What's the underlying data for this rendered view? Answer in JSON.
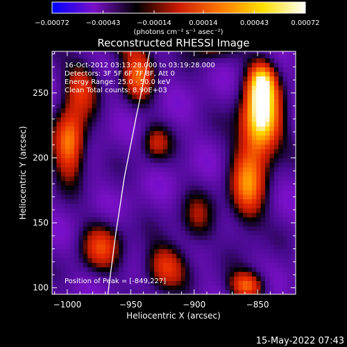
{
  "chart_data": {
    "type": "heatmap",
    "title": "Reconstructed RHESSI Image",
    "xlabel": "Heliocentric X (arcsec)",
    "ylabel": "Heliocentric Y (arcsec)",
    "xlim": [
      -1012,
      -820
    ],
    "ylim": [
      95,
      282
    ],
    "x_ticks": [
      -1000,
      -950,
      -900,
      -850
    ],
    "x_tick_labels": [
      "−1000",
      "−950",
      "−900",
      "−850"
    ],
    "y_ticks": [
      100,
      150,
      200,
      250
    ],
    "y_tick_labels": [
      "100",
      "150",
      "200",
      "250"
    ],
    "colorbar": {
      "range": [
        -0.00072,
        0.00072
      ],
      "ticks": [
        -0.00072,
        -0.00043,
        -0.00014,
        0.00014,
        0.00043,
        0.00072
      ],
      "tick_labels": [
        "−0.00072",
        "−0.00043",
        "−0.00014",
        "0.00014",
        "0.00043",
        "0.00072"
      ],
      "units": "(photons cm⁻² s⁻¹ asec⁻²)",
      "colors": [
        "#0000ff",
        "#7a10c8",
        "#000000",
        "#cc1a00",
        "#ff7a00",
        "#ffe000",
        "#ffffff"
      ]
    },
    "info_lines": [
      "16-Oct-2012 03:13:28.000 to 03:19:28.000",
      "Detectors: 3F 5F 6F 7F 8F, Att 0",
      "Energy Range: 25.0 - 50.0 keV",
      "Clean     Total counts: 8.90E+03"
    ],
    "peak_label": "Position of Peak = [-849,227]",
    "peak": [
      -849,
      227
    ],
    "limb_curve": [
      [
        -968,
        95
      ],
      [
        -962,
        140
      ],
      [
        -955,
        185
      ],
      [
        -946,
        230
      ],
      [
        -935,
        282
      ]
    ],
    "sources": [
      {
        "x": -849,
        "y": 227,
        "amp": 1.0,
        "sx": 11,
        "sy": 20
      },
      {
        "x": -848,
        "y": 258,
        "amp": 0.7,
        "sx": 8,
        "sy": 12
      },
      {
        "x": -860,
        "y": 175,
        "amp": 0.6,
        "sx": 10,
        "sy": 22
      },
      {
        "x": -1000,
        "y": 210,
        "amp": 0.75,
        "sx": 9,
        "sy": 18
      },
      {
        "x": -990,
        "y": 255,
        "amp": 0.45,
        "sx": 10,
        "sy": 14
      },
      {
        "x": -975,
        "y": 130,
        "amp": 0.45,
        "sx": 12,
        "sy": 14
      },
      {
        "x": -945,
        "y": 265,
        "amp": 0.55,
        "sx": 9,
        "sy": 16
      },
      {
        "x": -932,
        "y": 210,
        "amp": 0.35,
        "sx": 8,
        "sy": 10
      },
      {
        "x": -925,
        "y": 115,
        "amp": 0.5,
        "sx": 12,
        "sy": 12
      },
      {
        "x": -888,
        "y": 285,
        "amp": 0.35,
        "sx": 12,
        "sy": 8
      },
      {
        "x": -860,
        "y": 100,
        "amp": 0.6,
        "sx": 10,
        "sy": 8
      },
      {
        "x": -900,
        "y": 150,
        "amp": 0.3,
        "sx": 10,
        "sy": 15
      },
      {
        "x": -955,
        "y": 290,
        "amp": 0.35,
        "sx": 10,
        "sy": 8
      }
    ],
    "grid": false
  },
  "timestamp": "15-May-2022 07:43"
}
